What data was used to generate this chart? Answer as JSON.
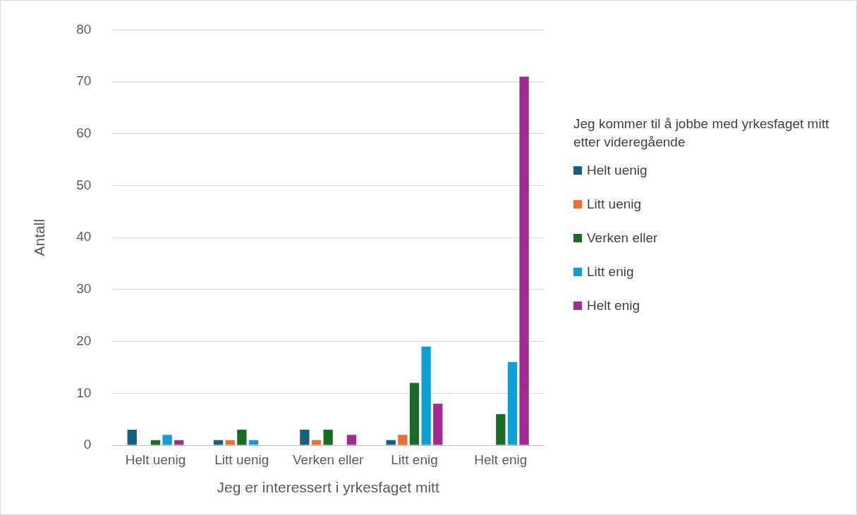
{
  "chart_data": {
    "type": "bar",
    "xlabel": "Jeg er interessert i yrkesfaget mitt",
    "ylabel": "Antall",
    "legend_title": "Jeg kommer til å jobbe med yrkesfaget mitt etter videregående",
    "categories": [
      "Helt uenig",
      "Litt uenig",
      "Verken eller",
      "Litt enig",
      "Helt enig"
    ],
    "series": [
      {
        "name": "Helt uenig",
        "color": "#156082",
        "values": [
          3,
          1,
          3,
          1,
          0
        ]
      },
      {
        "name": "Litt uenig",
        "color": "#e97132",
        "values": [
          0,
          1,
          1,
          2,
          0
        ]
      },
      {
        "name": "Verken eller",
        "color": "#196b24",
        "values": [
          1,
          3,
          3,
          12,
          6
        ]
      },
      {
        "name": "Litt enig",
        "color": "#0f9ed5",
        "values": [
          2,
          1,
          0,
          19,
          16
        ]
      },
      {
        "name": "Helt enig",
        "color": "#a02b93",
        "values": [
          1,
          0,
          2,
          8,
          71
        ]
      }
    ],
    "ylim": [
      0,
      80
    ],
    "yticks": [
      0,
      10,
      20,
      30,
      40,
      50,
      60,
      70,
      80
    ],
    "grid": "y",
    "legend": "right"
  }
}
